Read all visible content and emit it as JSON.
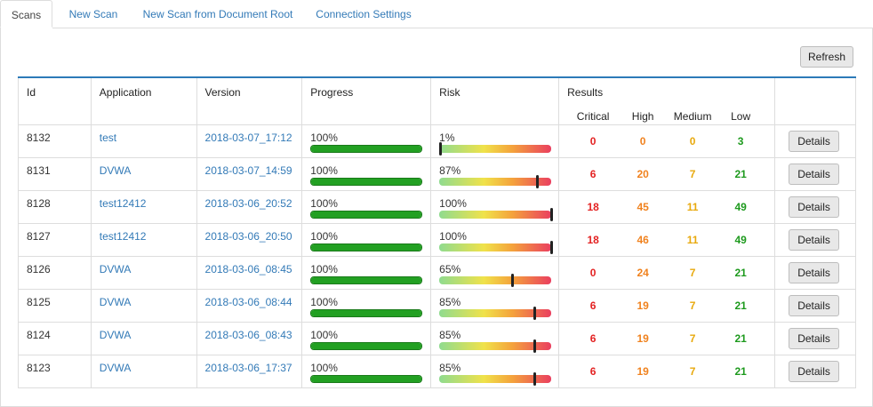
{
  "tabs": [
    {
      "label": "Scans",
      "active": true
    },
    {
      "label": "New Scan",
      "active": false
    },
    {
      "label": "New Scan from Document Root",
      "active": false
    },
    {
      "label": "Connection Settings",
      "active": false
    }
  ],
  "refresh_label": "Refresh",
  "table": {
    "headers": {
      "id": "Id",
      "application": "Application",
      "version": "Version",
      "progress": "Progress",
      "risk": "Risk",
      "results": "Results"
    },
    "result_headers": {
      "critical": "Critical",
      "high": "High",
      "medium": "Medium",
      "low": "Low"
    },
    "details_label": "Details",
    "rows": [
      {
        "id": "8132",
        "application": "test",
        "version": "2018-03-07_17:12",
        "progress_text": "100%",
        "progress": 100,
        "risk_text": "1%",
        "risk": 1,
        "critical": "0",
        "high": "0",
        "medium": "0",
        "low": "3"
      },
      {
        "id": "8131",
        "application": "DVWA",
        "version": "2018-03-07_14:59",
        "progress_text": "100%",
        "progress": 100,
        "risk_text": "87%",
        "risk": 87,
        "critical": "6",
        "high": "20",
        "medium": "7",
        "low": "21"
      },
      {
        "id": "8128",
        "application": "test12412",
        "version": "2018-03-06_20:52",
        "progress_text": "100%",
        "progress": 100,
        "risk_text": "100%",
        "risk": 100,
        "critical": "18",
        "high": "45",
        "medium": "11",
        "low": "49"
      },
      {
        "id": "8127",
        "application": "test12412",
        "version": "2018-03-06_20:50",
        "progress_text": "100%",
        "progress": 100,
        "risk_text": "100%",
        "risk": 100,
        "critical": "18",
        "high": "46",
        "medium": "11",
        "low": "49"
      },
      {
        "id": "8126",
        "application": "DVWA",
        "version": "2018-03-06_08:45",
        "progress_text": "100%",
        "progress": 100,
        "risk_text": "65%",
        "risk": 65,
        "critical": "0",
        "high": "24",
        "medium": "7",
        "low": "21"
      },
      {
        "id": "8125",
        "application": "DVWA",
        "version": "2018-03-06_08:44",
        "progress_text": "100%",
        "progress": 100,
        "risk_text": "85%",
        "risk": 85,
        "critical": "6",
        "high": "19",
        "medium": "7",
        "low": "21"
      },
      {
        "id": "8124",
        "application": "DVWA",
        "version": "2018-03-06_08:43",
        "progress_text": "100%",
        "progress": 100,
        "risk_text": "85%",
        "risk": 85,
        "critical": "6",
        "high": "19",
        "medium": "7",
        "low": "21"
      },
      {
        "id": "8123",
        "application": "DVWA",
        "version": "2018-03-06_17:37",
        "progress_text": "100%",
        "progress": 100,
        "risk_text": "85%",
        "risk": 85,
        "critical": "6",
        "high": "19",
        "medium": "7",
        "low": "21"
      }
    ]
  },
  "colors": {
    "accent": "#2c7ab8",
    "link": "#337ab7",
    "critical": "#e32222",
    "high": "#f0821e",
    "medium": "#e8a90d",
    "low": "#1e9a1e",
    "progress": "#22a022"
  }
}
